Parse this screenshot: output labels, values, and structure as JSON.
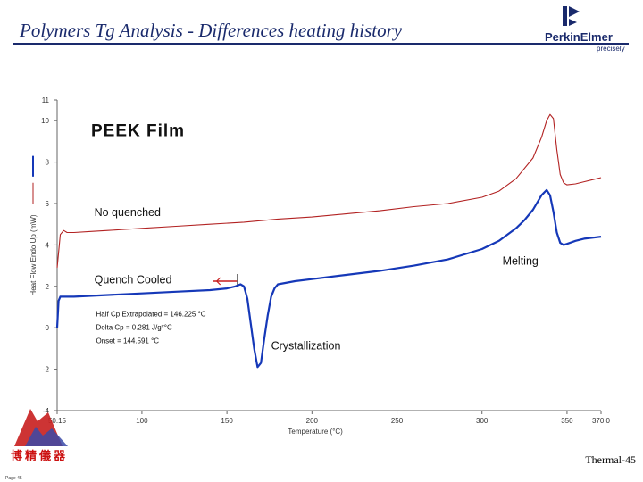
{
  "slide": {
    "title": "Polymers Tg Analysis - Differences heating history",
    "footer": "Thermal-45",
    "page": "Page 45",
    "brand_text": "博精儀器"
  },
  "logo": {
    "word": "PerkinElmer",
    "tagline": "precisely",
    "icon": "perkinelmer-logo-icon",
    "color": "#1a2a6c"
  },
  "chart_data": {
    "type": "line",
    "title": "PEEK Film",
    "xlabel": "Temperature (°C)",
    "ylabel": "Heat Flow Endo Up (mW)",
    "xlim": [
      50.15,
      370.0
    ],
    "ylim": [
      -4,
      11
    ],
    "x_ticks": [
      {
        "value": 50.15,
        "label": "50.15"
      },
      {
        "value": 100,
        "label": "100"
      },
      {
        "value": 150,
        "label": "150"
      },
      {
        "value": 200,
        "label": "200"
      },
      {
        "value": 250,
        "label": "250"
      },
      {
        "value": 300,
        "label": "300"
      },
      {
        "value": 350,
        "label": "350"
      },
      {
        "value": 370,
        "label": "370.0"
      }
    ],
    "y_ticks": [
      {
        "value": 11,
        "label": "11"
      },
      {
        "value": 10,
        "label": "10"
      },
      {
        "value": 8,
        "label": "8"
      },
      {
        "value": 6,
        "label": "6"
      },
      {
        "value": 4,
        "label": "4"
      },
      {
        "value": 2,
        "label": "2"
      },
      {
        "value": 0,
        "label": "0"
      },
      {
        "value": -2,
        "label": "-2"
      },
      {
        "value": -4,
        "label": "-4"
      }
    ],
    "series": [
      {
        "name": "No quenched",
        "color": "#b22222",
        "x": [
          50.15,
          52,
          54,
          56,
          60,
          70,
          80,
          90,
          100,
          120,
          140,
          160,
          180,
          200,
          220,
          240,
          260,
          280,
          300,
          310,
          320,
          330,
          335,
          338,
          340,
          342,
          344,
          346,
          348,
          350,
          355,
          360,
          365,
          370
        ],
        "y": [
          2.9,
          4.5,
          4.7,
          4.6,
          4.6,
          4.65,
          4.7,
          4.75,
          4.8,
          4.9,
          5.0,
          5.1,
          5.25,
          5.35,
          5.5,
          5.65,
          5.85,
          6.0,
          6.3,
          6.6,
          7.2,
          8.2,
          9.2,
          10.0,
          10.3,
          10.1,
          8.6,
          7.4,
          7.0,
          6.9,
          6.95,
          7.05,
          7.15,
          7.25
        ]
      },
      {
        "name": "Quench Cooled",
        "color": "#1538b8",
        "x": [
          50.15,
          51,
          52,
          54,
          60,
          80,
          100,
          120,
          140,
          150,
          155,
          158,
          160,
          162,
          164,
          166,
          168,
          170,
          172,
          174,
          176,
          178,
          180,
          190,
          200,
          220,
          240,
          260,
          280,
          300,
          310,
          320,
          325,
          330,
          335,
          338,
          340,
          342,
          344,
          346,
          348,
          350,
          355,
          360,
          365,
          370
        ],
        "y": [
          0.0,
          1.3,
          1.5,
          1.5,
          1.5,
          1.58,
          1.66,
          1.74,
          1.82,
          1.9,
          2.0,
          2.1,
          2.0,
          1.4,
          0.2,
          -1.0,
          -1.9,
          -1.7,
          -0.5,
          0.6,
          1.5,
          1.9,
          2.1,
          2.25,
          2.35,
          2.55,
          2.75,
          3.0,
          3.3,
          3.8,
          4.2,
          4.8,
          5.2,
          5.7,
          6.4,
          6.65,
          6.4,
          5.6,
          4.6,
          4.1,
          4.0,
          4.05,
          4.2,
          4.3,
          4.35,
          4.4
        ]
      }
    ],
    "annotations": [
      {
        "text": "No quenched",
        "x": 72,
        "y": 5.4
      },
      {
        "text": "Quench Cooled",
        "x": 72,
        "y": 2.15
      },
      {
        "text": "Melting",
        "x": 312,
        "y": 3.05
      },
      {
        "text": "Crystallization",
        "x": 176,
        "y": -1.05
      },
      {
        "text": "Half Cp Extrapolated = 146.225 °C",
        "x": 73,
        "y": 0.55
      },
      {
        "text": "Delta Cp = 0.281 J/g*°C",
        "x": 73,
        "y": -0.1
      },
      {
        "text": "Onset = 144.591 °C",
        "x": 73,
        "y": -0.75
      }
    ]
  }
}
